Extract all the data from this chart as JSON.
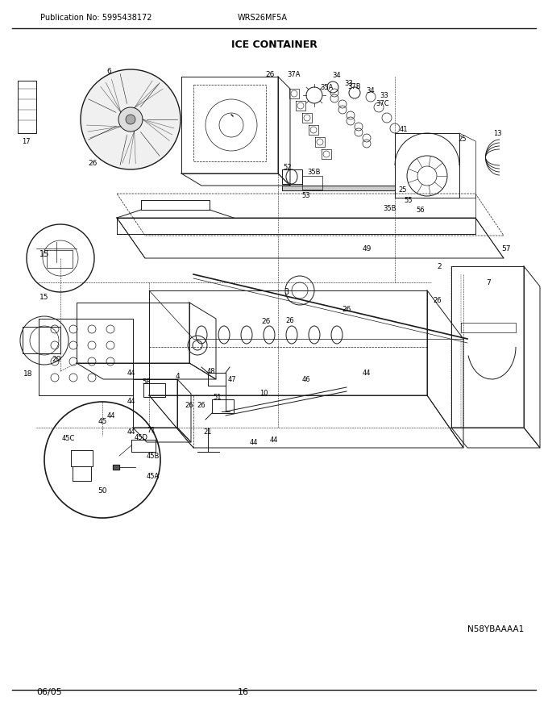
{
  "title": "ICE CONTAINER",
  "publication_text": "Publication No: 5995438172",
  "model_text": "WRS26MF5A",
  "date_text": "06/05",
  "page_text": "16",
  "diagram_id": "N58YBAAAA1",
  "bg_color": "#ffffff",
  "line_color": "#1a1a1a",
  "text_color": "#000000",
  "fig_width": 6.8,
  "fig_height": 8.8,
  "dpi": 100,
  "label_fontsize": 6.5,
  "header_fontsize": 7.5,
  "title_fontsize": 9,
  "footer_fontsize": 8
}
